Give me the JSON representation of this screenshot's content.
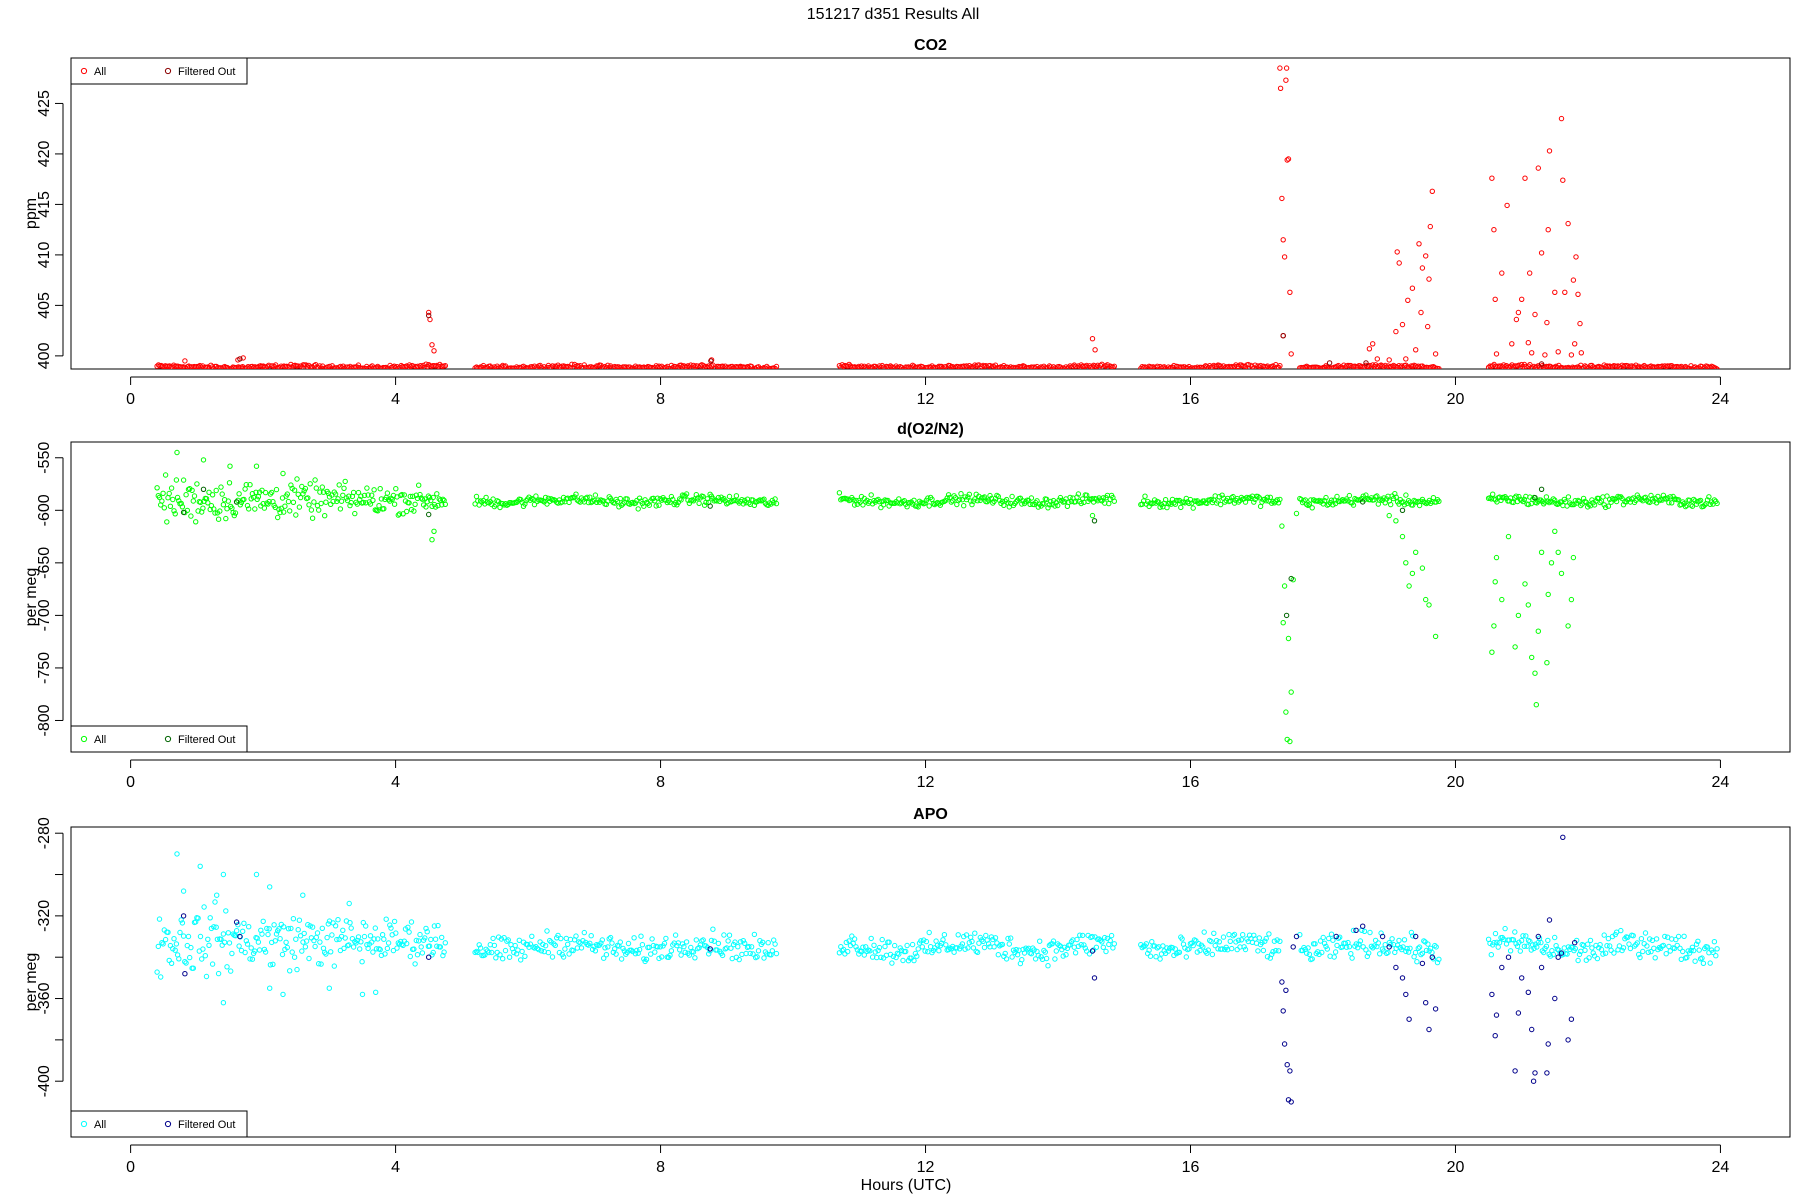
{
  "figure": {
    "title": "151217   d351   Results All",
    "xlabel": "Hours (UTC)"
  },
  "colors": {
    "co2_all": "#ff0000",
    "co2_filtered": "#8b0000",
    "o2_all": "#00ff00",
    "o2_filtered": "#006400",
    "apo_all": "#00ffff",
    "apo_filtered": "#00008b"
  },
  "chart_data": [
    {
      "type": "scatter",
      "title": "CO2",
      "xlabel": "",
      "ylabel": "ppm",
      "xlim": [
        -0.9,
        25.05
      ],
      "ylim": [
        398.7,
        429.5
      ],
      "xticks": [
        0,
        4,
        8,
        12,
        16,
        20,
        24
      ],
      "yticks": [
        400,
        405,
        410,
        415,
        420,
        425
      ],
      "grid": false,
      "legend": {
        "position": "top-left",
        "entries": [
          "All",
          "Filtered Out"
        ]
      },
      "baseline": {
        "value": 398.9,
        "noise": 0.15,
        "segments": [
          [
            0.4,
            4.75
          ],
          [
            5.2,
            9.75
          ],
          [
            10.7,
            14.85
          ],
          [
            15.25,
            17.35
          ],
          [
            17.65,
            19.75
          ],
          [
            20.5,
            23.95
          ]
        ]
      },
      "series": [
        {
          "name": "All",
          "color_key": "co2_all",
          "points": [
            [
              0.82,
              399.5
            ],
            [
              1.62,
              399.6
            ],
            [
              1.7,
              399.8
            ],
            [
              4.5,
              404.3
            ],
            [
              4.52,
              403.6
            ],
            [
              4.55,
              401.1
            ],
            [
              4.58,
              400.5
            ],
            [
              8.77,
              399.6
            ],
            [
              14.52,
              401.7
            ],
            [
              14.56,
              400.6
            ],
            [
              17.35,
              428.5
            ],
            [
              17.36,
              426.5
            ],
            [
              17.38,
              415.6
            ],
            [
              17.4,
              411.5
            ],
            [
              17.42,
              409.8
            ],
            [
              17.44,
              427.3
            ],
            [
              17.45,
              428.5
            ],
            [
              17.46,
              419.4
            ],
            [
              17.48,
              419.5
            ],
            [
              17.5,
              406.3
            ],
            [
              17.52,
              400.2
            ],
            [
              17.4,
              402.0
            ],
            [
              18.7,
              400.7
            ],
            [
              18.75,
              401.2
            ],
            [
              18.82,
              399.7
            ],
            [
              19.0,
              399.6
            ],
            [
              19.1,
              402.4
            ],
            [
              19.12,
              410.3
            ],
            [
              19.15,
              409.2
            ],
            [
              19.2,
              403.1
            ],
            [
              19.25,
              399.7
            ],
            [
              19.28,
              405.5
            ],
            [
              19.35,
              406.7
            ],
            [
              19.4,
              400.6
            ],
            [
              19.45,
              411.1
            ],
            [
              19.48,
              404.3
            ],
            [
              19.5,
              408.7
            ],
            [
              19.55,
              409.9
            ],
            [
              19.58,
              402.9
            ],
            [
              19.6,
              407.6
            ],
            [
              19.62,
              412.8
            ],
            [
              19.65,
              416.3
            ],
            [
              19.7,
              400.2
            ],
            [
              20.55,
              417.6
            ],
            [
              20.58,
              412.5
            ],
            [
              20.6,
              405.6
            ],
            [
              20.62,
              400.2
            ],
            [
              20.7,
              408.2
            ],
            [
              20.78,
              414.9
            ],
            [
              20.85,
              401.2
            ],
            [
              20.92,
              403.6
            ],
            [
              20.95,
              404.3
            ],
            [
              21.0,
              405.6
            ],
            [
              21.05,
              417.6
            ],
            [
              21.1,
              401.3
            ],
            [
              21.12,
              408.2
            ],
            [
              21.15,
              400.3
            ],
            [
              21.2,
              404.1
            ],
            [
              21.25,
              418.6
            ],
            [
              21.3,
              410.2
            ],
            [
              21.35,
              400.1
            ],
            [
              21.38,
              403.3
            ],
            [
              21.4,
              412.5
            ],
            [
              21.42,
              420.3
            ],
            [
              21.5,
              406.3
            ],
            [
              21.55,
              400.4
            ],
            [
              21.6,
              423.5
            ],
            [
              21.62,
              417.4
            ],
            [
              21.65,
              406.3
            ],
            [
              21.7,
              413.1
            ],
            [
              21.75,
              400.1
            ],
            [
              21.78,
              407.5
            ],
            [
              21.8,
              401.2
            ],
            [
              21.82,
              409.8
            ],
            [
              21.85,
              406.1
            ],
            [
              21.88,
              403.2
            ],
            [
              21.9,
              400.3
            ]
          ]
        },
        {
          "name": "Filtered Out",
          "color_key": "co2_filtered",
          "points": [
            [
              1.65,
              399.7
            ],
            [
              4.5,
              404.0
            ],
            [
              8.76,
              399.5
            ],
            [
              17.4,
              402.0
            ],
            [
              18.1,
              399.3
            ],
            [
              18.65,
              399.3
            ],
            [
              21.3,
              399.2
            ]
          ]
        }
      ]
    },
    {
      "type": "scatter",
      "title": "d(O2/N2)",
      "xlabel": "",
      "ylabel": "per meg",
      "xlim": [
        -0.9,
        25.05
      ],
      "ylim": [
        -830,
        -535
      ],
      "xticks": [
        0,
        4,
        8,
        12,
        16,
        20,
        24
      ],
      "yticks": [
        -800,
        -750,
        -700,
        -650,
        -600,
        -550
      ],
      "grid": false,
      "legend": {
        "position": "bottom-left",
        "entries": [
          "All",
          "Filtered Out"
        ]
      },
      "baseline": {
        "value": -591,
        "noise": 4,
        "segments": [
          [
            5.2,
            9.75
          ],
          [
            10.7,
            14.85
          ],
          [
            15.25,
            17.35
          ],
          [
            17.65,
            19.75
          ],
          [
            20.5,
            23.95
          ]
        ]
      },
      "scatter_segment": {
        "range": [
          0.4,
          4.75
        ],
        "center": -590,
        "spread": 18
      },
      "series": [
        {
          "name": "All",
          "color_key": "o2_all",
          "points": [
            [
              0.7,
              -545
            ],
            [
              1.1,
              -552
            ],
            [
              1.5,
              -558
            ],
            [
              1.9,
              -558
            ],
            [
              2.3,
              -565
            ],
            [
              4.55,
              -628
            ],
            [
              4.58,
              -620
            ],
            [
              14.52,
              -605
            ],
            [
              17.38,
              -615
            ],
            [
              17.4,
              -707
            ],
            [
              17.42,
              -672
            ],
            [
              17.44,
              -792
            ],
            [
              17.46,
              -818
            ],
            [
              17.48,
              -722
            ],
            [
              17.5,
              -820
            ],
            [
              17.52,
              -773
            ],
            [
              17.55,
              -666
            ],
            [
              17.6,
              -603
            ],
            [
              19.0,
              -605
            ],
            [
              19.1,
              -610
            ],
            [
              19.2,
              -625
            ],
            [
              19.25,
              -650
            ],
            [
              19.3,
              -672
            ],
            [
              19.35,
              -660
            ],
            [
              19.4,
              -640
            ],
            [
              19.5,
              -655
            ],
            [
              19.55,
              -685
            ],
            [
              19.6,
              -690
            ],
            [
              19.7,
              -720
            ],
            [
              20.55,
              -735
            ],
            [
              20.58,
              -710
            ],
            [
              20.6,
              -668
            ],
            [
              20.62,
              -645
            ],
            [
              20.7,
              -685
            ],
            [
              20.8,
              -625
            ],
            [
              20.9,
              -730
            ],
            [
              20.95,
              -700
            ],
            [
              21.05,
              -670
            ],
            [
              21.1,
              -690
            ],
            [
              21.15,
              -740
            ],
            [
              21.2,
              -755
            ],
            [
              21.22,
              -785
            ],
            [
              21.25,
              -715
            ],
            [
              21.3,
              -640
            ],
            [
              21.38,
              -745
            ],
            [
              21.4,
              -680
            ],
            [
              21.45,
              -650
            ],
            [
              21.5,
              -620
            ],
            [
              21.55,
              -640
            ],
            [
              21.6,
              -660
            ],
            [
              21.7,
              -710
            ],
            [
              21.75,
              -685
            ],
            [
              21.78,
              -645
            ]
          ]
        },
        {
          "name": "Filtered Out",
          "color_key": "o2_filtered",
          "points": [
            [
              0.8,
              -602
            ],
            [
              1.1,
              -580
            ],
            [
              1.6,
              -592
            ],
            [
              4.5,
              -604
            ],
            [
              8.75,
              -596
            ],
            [
              14.55,
              -610
            ],
            [
              17.45,
              -700
            ],
            [
              17.52,
              -665
            ],
            [
              18.6,
              -592
            ],
            [
              19.2,
              -600
            ],
            [
              21.2,
              -588
            ],
            [
              21.3,
              -580
            ]
          ]
        }
      ]
    },
    {
      "type": "scatter",
      "title": "APO",
      "xlabel": "Hours (UTC)",
      "ylabel": "per meg",
      "xlim": [
        -0.9,
        25.05
      ],
      "ylim": [
        -427,
        -277
      ],
      "xticks": [
        0,
        4,
        8,
        12,
        16,
        20,
        24
      ],
      "yticks": [
        -400,
        -360,
        -320,
        -280
      ],
      "grid": false,
      "legend": {
        "position": "bottom-left",
        "entries": [
          "All",
          "Filtered Out"
        ]
      },
      "baseline": {
        "value": -335,
        "noise": 5,
        "segments": [
          [
            5.2,
            9.75
          ],
          [
            10.7,
            14.85
          ],
          [
            15.25,
            17.35
          ],
          [
            17.65,
            19.75
          ],
          [
            20.5,
            23.95
          ]
        ]
      },
      "scatter_segment": {
        "range": [
          0.4,
          4.75
        ],
        "center": -332,
        "spread": 14
      },
      "series": [
        {
          "name": "All",
          "color_key": "apo_all",
          "points": [
            [
              0.7,
              -290
            ],
            [
              0.8,
              -308
            ],
            [
              1.05,
              -296
            ],
            [
              1.3,
              -310
            ],
            [
              1.4,
              -300
            ],
            [
              1.9,
              -300
            ],
            [
              2.1,
              -306
            ],
            [
              2.6,
              -310
            ],
            [
              3.3,
              -314
            ],
            [
              1.4,
              -362
            ],
            [
              2.1,
              -355
            ],
            [
              2.3,
              -358
            ],
            [
              3.0,
              -355
            ],
            [
              3.5,
              -358
            ],
            [
              3.7,
              -357
            ]
          ]
        },
        {
          "name": "Filtered Out",
          "color_key": "apo_filtered",
          "points": [
            [
              0.8,
              -320
            ],
            [
              0.82,
              -348
            ],
            [
              1.6,
              -323
            ],
            [
              1.65,
              -330
            ],
            [
              4.5,
              -340
            ],
            [
              8.75,
              -336
            ],
            [
              14.52,
              -337
            ],
            [
              14.55,
              -350
            ],
            [
              17.38,
              -352
            ],
            [
              17.4,
              -366
            ],
            [
              17.42,
              -382
            ],
            [
              17.44,
              -356
            ],
            [
              17.46,
              -392
            ],
            [
              17.48,
              -409
            ],
            [
              17.5,
              -395
            ],
            [
              17.52,
              -410
            ],
            [
              17.55,
              -335
            ],
            [
              17.6,
              -330
            ],
            [
              18.2,
              -330
            ],
            [
              18.5,
              -327
            ],
            [
              18.6,
              -325
            ],
            [
              18.9,
              -330
            ],
            [
              19.0,
              -335
            ],
            [
              19.1,
              -345
            ],
            [
              19.2,
              -350
            ],
            [
              19.25,
              -358
            ],
            [
              19.3,
              -370
            ],
            [
              19.4,
              -330
            ],
            [
              19.5,
              -343
            ],
            [
              19.55,
              -362
            ],
            [
              19.6,
              -375
            ],
            [
              19.65,
              -340
            ],
            [
              19.7,
              -365
            ],
            [
              20.55,
              -358
            ],
            [
              20.6,
              -378
            ],
            [
              20.62,
              -368
            ],
            [
              20.7,
              -345
            ],
            [
              20.8,
              -340
            ],
            [
              20.9,
              -395
            ],
            [
              20.95,
              -367
            ],
            [
              21.0,
              -350
            ],
            [
              21.1,
              -357
            ],
            [
              21.15,
              -375
            ],
            [
              21.18,
              -400
            ],
            [
              21.2,
              -396
            ],
            [
              21.25,
              -330
            ],
            [
              21.3,
              -345
            ],
            [
              21.38,
              -396
            ],
            [
              21.4,
              -382
            ],
            [
              21.42,
              -322
            ],
            [
              21.5,
              -360
            ],
            [
              21.55,
              -340
            ],
            [
              21.6,
              -338
            ],
            [
              21.62,
              -282
            ],
            [
              21.7,
              -380
            ],
            [
              21.75,
              -370
            ],
            [
              21.8,
              -333
            ]
          ]
        }
      ]
    }
  ]
}
